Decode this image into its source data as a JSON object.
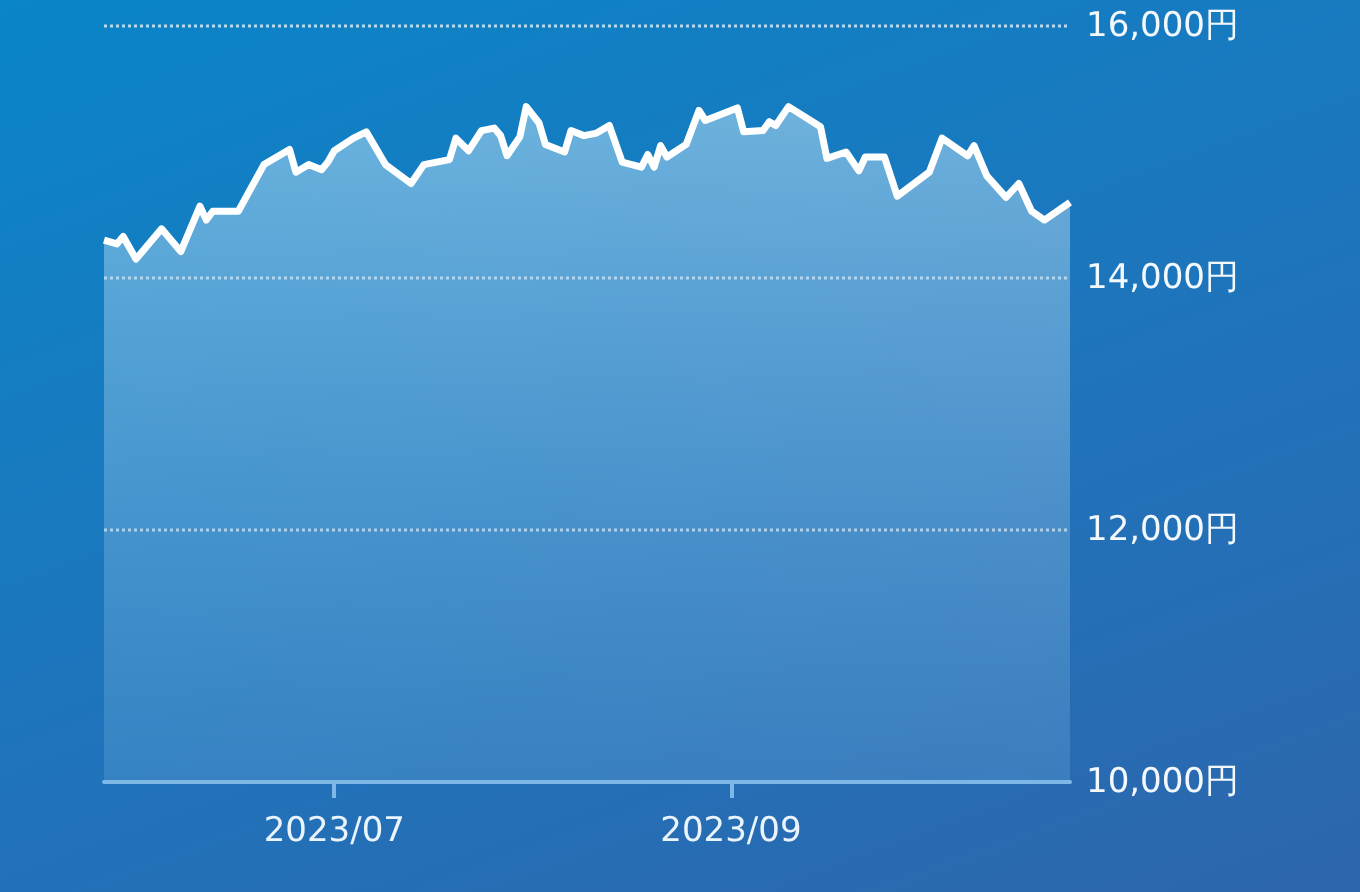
{
  "chart_data": {
    "type": "area",
    "x": [
      "2023-05-26",
      "2023-05-28",
      "2023-05-29",
      "2023-05-31",
      "2023-06-04",
      "2023-06-07",
      "2023-06-10",
      "2023-06-11",
      "2023-06-12",
      "2023-06-16",
      "2023-06-20",
      "2023-06-24",
      "2023-06-25",
      "2023-06-27",
      "2023-06-29",
      "2023-06-30",
      "2023-07-01",
      "2023-07-04",
      "2023-07-06",
      "2023-07-09",
      "2023-07-13",
      "2023-07-15",
      "2023-07-19",
      "2023-07-20",
      "2023-07-22",
      "2023-07-24",
      "2023-07-26",
      "2023-07-27",
      "2023-07-28",
      "2023-07-30",
      "2023-07-31",
      "2023-08-02",
      "2023-08-03",
      "2023-08-06",
      "2023-08-07",
      "2023-08-09",
      "2023-08-11",
      "2023-08-13",
      "2023-08-15",
      "2023-08-18",
      "2023-08-19",
      "2023-08-20",
      "2023-08-21",
      "2023-08-22",
      "2023-08-25",
      "2023-08-27",
      "2023-08-28",
      "2023-09-02",
      "2023-09-03",
      "2023-09-06",
      "2023-09-07",
      "2023-09-08",
      "2023-09-10",
      "2023-09-15",
      "2023-09-16",
      "2023-09-19",
      "2023-09-21",
      "2023-09-22",
      "2023-09-25",
      "2023-09-27",
      "2023-10-02",
      "2023-10-04",
      "2023-10-08",
      "2023-10-09",
      "2023-10-11",
      "2023-10-14",
      "2023-10-16",
      "2023-10-18",
      "2023-10-20",
      "2023-10-24"
    ],
    "series": [
      {
        "color": "#ffffff",
        "values": [
          14300,
          14270,
          14330,
          14150,
          14390,
          14210,
          14570,
          14460,
          14530,
          14530,
          14900,
          15020,
          14840,
          14900,
          14860,
          14920,
          15010,
          15110,
          15160,
          14900,
          14750,
          14900,
          14940,
          15110,
          15010,
          15170,
          15190,
          15130,
          14970,
          15120,
          15360,
          15230,
          15060,
          15000,
          15170,
          15130,
          15150,
          15210,
          14920,
          14880,
          14980,
          14880,
          15050,
          14960,
          15060,
          15330,
          15250,
          15350,
          15160,
          15170,
          15240,
          15210,
          15360,
          15200,
          14950,
          15000,
          14850,
          14960,
          14960,
          14650,
          14840,
          15110,
          14970,
          15050,
          14810,
          14640,
          14750,
          14530,
          14460,
          14600
        ]
      }
    ],
    "xlim": [
      "2023-05-26",
      "2023-10-24"
    ],
    "xticks": [
      {
        "value": "2023-07-01",
        "label": "2023/07"
      },
      {
        "value": "2023-09-01",
        "label": "2023/09"
      }
    ],
    "ylim": [
      10000,
      16000
    ],
    "yticks": [
      {
        "value": 10000,
        "label": "10,000円"
      },
      {
        "value": 12000,
        "label": "12,000円"
      },
      {
        "value": 14000,
        "label": "14,000円"
      },
      {
        "value": 16000,
        "label": "16,000円"
      }
    ],
    "grid": "y",
    "marker": "none"
  }
}
